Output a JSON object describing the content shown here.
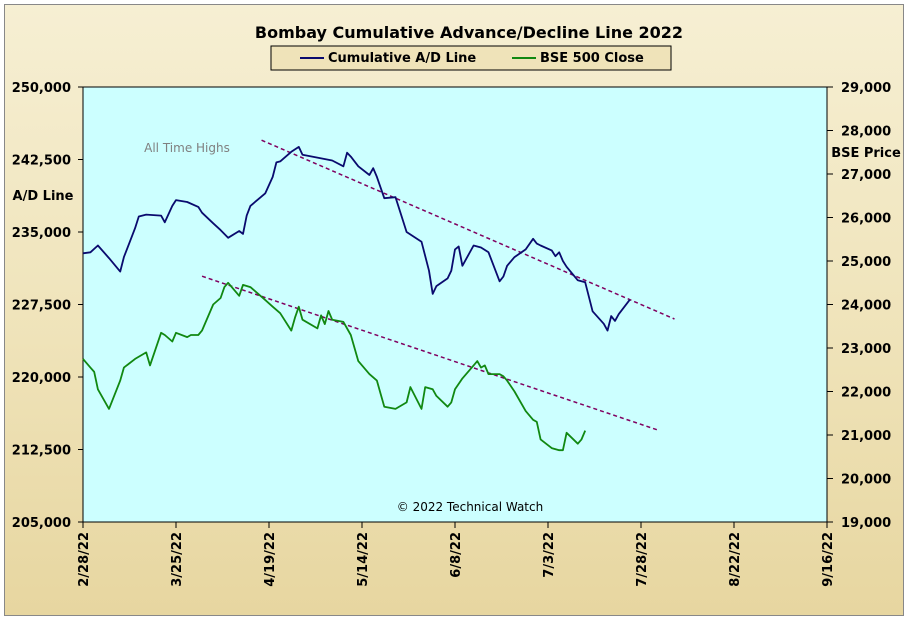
{
  "chart_data": {
    "type": "line",
    "title": "Bombay Cumulative Advance/Decline Line 2022",
    "legend": [
      "Cumulative A/D Line",
      "BSE 500 Close"
    ],
    "legend_position": "top",
    "ylabel_left": "A/D Line",
    "ylabel_right": "BSE Price",
    "ylim_left": [
      205000,
      250000
    ],
    "ylim_right": [
      19000,
      29000
    ],
    "yticks_left": [
      "250,000",
      "242,500",
      "235,000",
      "227,500",
      "220,000",
      "212,500",
      "205,000"
    ],
    "yticks_right": [
      "29,000",
      "28,000",
      "27,000",
      "26,000",
      "25,000",
      "24,000",
      "23,000",
      "22,000",
      "21,000",
      "20,000",
      "19,000"
    ],
    "x_tick_labels": [
      "2/28/22",
      "3/25/22",
      "4/19/22",
      "5/14/22",
      "6/8/22",
      "7/3/22",
      "7/28/22",
      "8/22/22",
      "9/16/22"
    ],
    "x_range": [
      "2022-02-28",
      "2022-09-16"
    ],
    "annotations": [
      "All Time Highs",
      "© 2022 Technical Watch"
    ],
    "colors": {
      "ad_line": "#0a0a6e",
      "bse_line": "#118811",
      "trendline": "#800060",
      "plot_bg": "#ccffff"
    },
    "series": [
      {
        "name": "Cumulative A/D Line",
        "axis": "left",
        "color": "#0a0a6e",
        "points": [
          [
            "2022-02-28",
            232800
          ],
          [
            "2022-03-02",
            232900
          ],
          [
            "2022-03-04",
            233600
          ],
          [
            "2022-03-07",
            232300
          ],
          [
            "2022-03-10",
            230900
          ],
          [
            "2022-03-11",
            232400
          ],
          [
            "2022-03-14",
            235400
          ],
          [
            "2022-03-15",
            236600
          ],
          [
            "2022-03-17",
            236800
          ],
          [
            "2022-03-21",
            236700
          ],
          [
            "2022-03-22",
            236000
          ],
          [
            "2022-03-24",
            237700
          ],
          [
            "2022-03-25",
            238300
          ],
          [
            "2022-03-28",
            238100
          ],
          [
            "2022-03-31",
            237600
          ],
          [
            "2022-04-01",
            237000
          ],
          [
            "2022-04-04",
            235900
          ],
          [
            "2022-04-06",
            235200
          ],
          [
            "2022-04-08",
            234400
          ],
          [
            "2022-04-11",
            235100
          ],
          [
            "2022-04-12",
            234800
          ],
          [
            "2022-04-13",
            236700
          ],
          [
            "2022-04-14",
            237700
          ],
          [
            "2022-04-18",
            239000
          ],
          [
            "2022-04-20",
            240700
          ],
          [
            "2022-04-21",
            242200
          ],
          [
            "2022-04-22",
            242300
          ],
          [
            "2022-04-25",
            243300
          ],
          [
            "2022-04-27",
            243800
          ],
          [
            "2022-04-28",
            243000
          ],
          [
            "2022-05-02",
            242700
          ],
          [
            "2022-05-06",
            242400
          ],
          [
            "2022-05-09",
            241800
          ],
          [
            "2022-05-10",
            243200
          ],
          [
            "2022-05-11",
            242800
          ],
          [
            "2022-05-13",
            241800
          ],
          [
            "2022-05-16",
            240900
          ],
          [
            "2022-05-17",
            241600
          ],
          [
            "2022-05-18",
            240700
          ],
          [
            "2022-05-20",
            238500
          ],
          [
            "2022-05-23",
            238600
          ],
          [
            "2022-05-25",
            236200
          ],
          [
            "2022-05-26",
            235000
          ],
          [
            "2022-05-30",
            234000
          ],
          [
            "2022-06-01",
            231000
          ],
          [
            "2022-06-02",
            228600
          ],
          [
            "2022-06-03",
            229400
          ],
          [
            "2022-06-06",
            230200
          ],
          [
            "2022-06-07",
            231000
          ],
          [
            "2022-06-08",
            233200
          ],
          [
            "2022-06-09",
            233500
          ],
          [
            "2022-06-10",
            231500
          ],
          [
            "2022-06-13",
            233600
          ],
          [
            "2022-06-15",
            233400
          ],
          [
            "2022-06-17",
            232900
          ],
          [
            "2022-06-20",
            229900
          ],
          [
            "2022-06-21",
            230400
          ],
          [
            "2022-06-22",
            231500
          ],
          [
            "2022-06-24",
            232400
          ],
          [
            "2022-06-27",
            233200
          ],
          [
            "2022-06-29",
            234300
          ],
          [
            "2022-06-30",
            233800
          ],
          [
            "2022-07-01",
            233600
          ],
          [
            "2022-07-04",
            233100
          ],
          [
            "2022-07-05",
            232500
          ],
          [
            "2022-07-06",
            232900
          ],
          [
            "2022-07-07",
            232000
          ],
          [
            "2022-07-08",
            231400
          ],
          [
            "2022-07-11",
            230000
          ],
          [
            "2022-07-13",
            229800
          ],
          [
            "2022-07-15",
            226800
          ],
          [
            "2022-07-18",
            225500
          ],
          [
            "2022-07-19",
            224800
          ],
          [
            "2022-07-20",
            226300
          ],
          [
            "2022-07-21",
            225800
          ],
          [
            "2022-07-22",
            226500
          ],
          [
            "2022-07-25",
            228000
          ]
        ]
      },
      {
        "name": "BSE 500 Close",
        "axis": "right",
        "color": "#118811",
        "points": [
          [
            "2022-02-28",
            22750
          ],
          [
            "2022-03-02",
            22550
          ],
          [
            "2022-03-03",
            22450
          ],
          [
            "2022-03-04",
            22050
          ],
          [
            "2022-03-07",
            21600
          ],
          [
            "2022-03-10",
            22250
          ],
          [
            "2022-03-11",
            22550
          ],
          [
            "2022-03-14",
            22750
          ],
          [
            "2022-03-17",
            22900
          ],
          [
            "2022-03-18",
            22600
          ],
          [
            "2022-03-21",
            23350
          ],
          [
            "2022-03-22",
            23300
          ],
          [
            "2022-03-24",
            23150
          ],
          [
            "2022-03-25",
            23350
          ],
          [
            "2022-03-28",
            23250
          ],
          [
            "2022-03-29",
            23300
          ],
          [
            "2022-03-31",
            23300
          ],
          [
            "2022-04-01",
            23400
          ],
          [
            "2022-04-04",
            24000
          ],
          [
            "2022-04-06",
            24150
          ],
          [
            "2022-04-07",
            24400
          ],
          [
            "2022-04-08",
            24500
          ],
          [
            "2022-04-11",
            24200
          ],
          [
            "2022-04-12",
            24450
          ],
          [
            "2022-04-14",
            24400
          ],
          [
            "2022-04-18",
            24100
          ],
          [
            "2022-04-20",
            23950
          ],
          [
            "2022-04-22",
            23800
          ],
          [
            "2022-04-25",
            23400
          ],
          [
            "2022-04-26",
            23700
          ],
          [
            "2022-04-27",
            23950
          ],
          [
            "2022-04-28",
            23650
          ],
          [
            "2022-05-02",
            23450
          ],
          [
            "2022-05-03",
            23750
          ],
          [
            "2022-05-04",
            23550
          ],
          [
            "2022-05-05",
            23850
          ],
          [
            "2022-05-06",
            23650
          ],
          [
            "2022-05-09",
            23600
          ],
          [
            "2022-05-11",
            23300
          ],
          [
            "2022-05-13",
            22700
          ],
          [
            "2022-05-16",
            22400
          ],
          [
            "2022-05-18",
            22250
          ],
          [
            "2022-05-19",
            21950
          ],
          [
            "2022-05-20",
            21650
          ],
          [
            "2022-05-23",
            21600
          ],
          [
            "2022-05-26",
            21750
          ],
          [
            "2022-05-27",
            22100
          ],
          [
            "2022-05-30",
            21600
          ],
          [
            "2022-05-31",
            22100
          ],
          [
            "2022-06-02",
            22050
          ],
          [
            "2022-06-03",
            21900
          ],
          [
            "2022-06-06",
            21650
          ],
          [
            "2022-06-07",
            21750
          ],
          [
            "2022-06-08",
            22050
          ],
          [
            "2022-06-10",
            22300
          ],
          [
            "2022-06-13",
            22600
          ],
          [
            "2022-06-14",
            22700
          ],
          [
            "2022-06-15",
            22550
          ],
          [
            "2022-06-16",
            22600
          ],
          [
            "2022-06-17",
            22400
          ],
          [
            "2022-06-20",
            22400
          ],
          [
            "2022-06-21",
            22350
          ],
          [
            "2022-06-22",
            22250
          ],
          [
            "2022-06-24",
            22000
          ],
          [
            "2022-06-27",
            21550
          ],
          [
            "2022-06-29",
            21350
          ],
          [
            "2022-06-30",
            21300
          ],
          [
            "2022-07-01",
            20900
          ],
          [
            "2022-07-04",
            20700
          ],
          [
            "2022-07-06",
            20650
          ],
          [
            "2022-07-07",
            20650
          ],
          [
            "2022-07-08",
            21050
          ],
          [
            "2022-07-11",
            20800
          ],
          [
            "2022-07-12",
            20900
          ],
          [
            "2022-07-13",
            21100
          ]
        ]
      }
    ],
    "trendlines": [
      {
        "start": [
          "2022-04-17",
          244500
        ],
        "end": [
          "2022-08-06",
          226000
        ],
        "axis": "left"
      },
      {
        "start": [
          "2022-04-01",
          24650
        ],
        "end": [
          "2022-08-02",
          21100
        ],
        "axis": "right"
      }
    ]
  }
}
